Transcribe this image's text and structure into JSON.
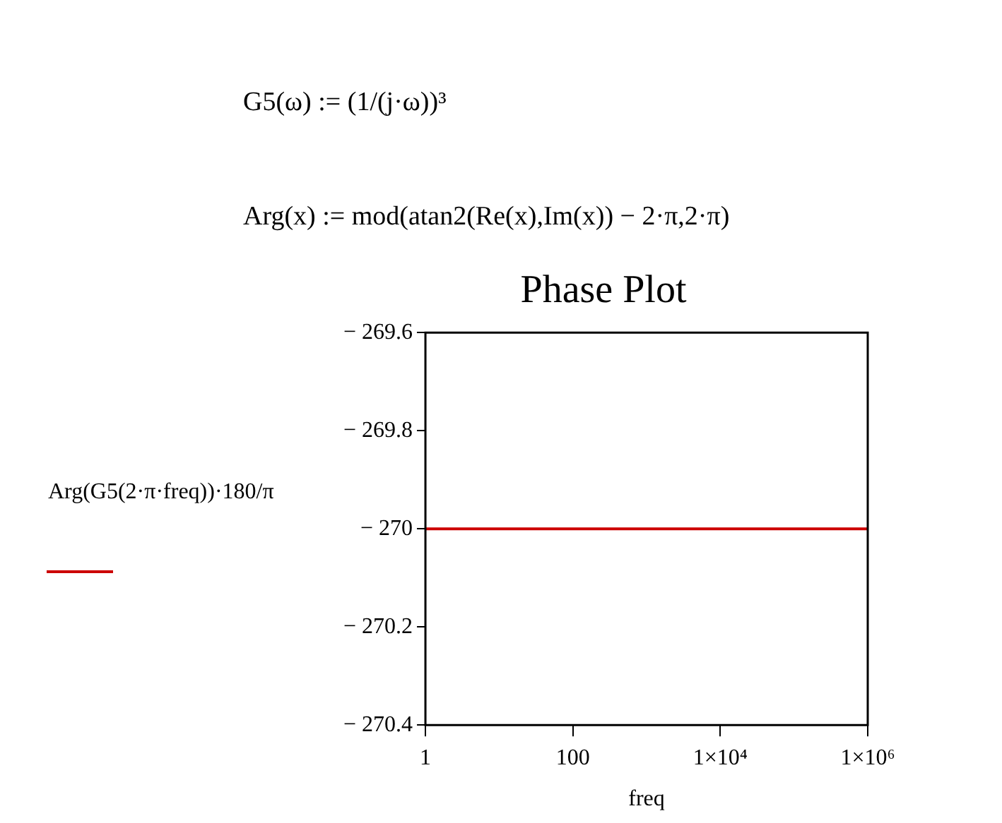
{
  "chart_data": {
    "type": "line",
    "title": "Phase Plot",
    "xlabel": "freq",
    "ylabel": "Arg(G5(2·π·freq))·180/π",
    "annotations": [
      "G5(ω) := (1/(j·ω))³",
      "Arg(x) := mod(atan2(Re(x),Im(x)) − 2·π,2·π)"
    ],
    "x": [
      1,
      1000000
    ],
    "series": [
      {
        "color": "#cc0000",
        "values": [
          -270,
          -270
        ]
      }
    ],
    "log": "x",
    "xlim": [
      1,
      1000000
    ],
    "xticks": [
      1,
      100,
      {
        "value": 10000,
        "label": "1×10⁴"
      },
      {
        "value": 1000000,
        "label": "1×10⁶"
      }
    ],
    "ylim": [
      -270.4,
      -269.6
    ],
    "yticks": [
      {
        "value": -269.6,
        "label": "− 269.6"
      },
      {
        "value": -269.8,
        "label": "− 269.8"
      },
      {
        "value": -270,
        "label": "− 270"
      },
      {
        "value": -270.2,
        "label": "− 270.2"
      },
      {
        "value": -270.4,
        "label": "− 270.4"
      }
    ],
    "grid": false,
    "legend": false
  }
}
